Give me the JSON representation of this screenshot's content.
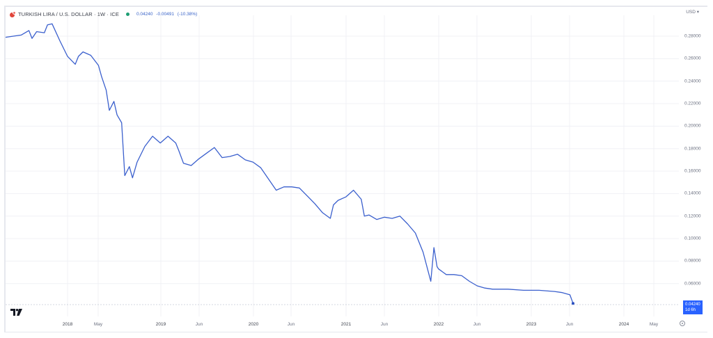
{
  "header": {
    "title": "TURKISH LIRA / U.S. DOLLAR · 1W · ICE",
    "last": "0.04240",
    "change": "-0.00491",
    "change_pct": "(-10.38%)",
    "status_icon": "market-open-dot",
    "symbol_icon": "currency-pair-flag-icon"
  },
  "currency_selector": "USD ▾",
  "price_tag": {
    "value": "0.04240",
    "countdown": "1d 6h"
  },
  "colors": {
    "line": "#3a5fcd",
    "price_tag_bg": "#2962ff",
    "status_dot": "#1e9e74",
    "change_text": "#3a64c8",
    "grid": "#f0f1f5"
  },
  "chart_data": {
    "type": "line",
    "title": "TURKISH LIRA / U.S. DOLLAR · 1W · ICE",
    "xlabel": "",
    "ylabel": "USD",
    "ylim": [
      0.04,
      0.295
    ],
    "grid": true,
    "legend": "none",
    "y_ticks": [
      "0.28000",
      "0.26000",
      "0.24000",
      "0.22000",
      "0.20000",
      "0.18000",
      "0.16000",
      "0.14000",
      "0.12000",
      "0.10000",
      "0.08000",
      "0.06000"
    ],
    "x_ticks": [
      {
        "label": "2018",
        "year": true
      },
      {
        "label": "May",
        "year": false
      },
      {
        "label": "2019",
        "year": true
      },
      {
        "label": "Jun",
        "year": false
      },
      {
        "label": "2020",
        "year": true
      },
      {
        "label": "Jun",
        "year": false
      },
      {
        "label": "2021",
        "year": true
      },
      {
        "label": "Jun",
        "year": false
      },
      {
        "label": "2022",
        "year": true
      },
      {
        "label": "Jun",
        "year": false
      },
      {
        "label": "2023",
        "year": true
      },
      {
        "label": "Jun",
        "year": false
      },
      {
        "label": "2024",
        "year": true
      },
      {
        "label": "May",
        "year": false
      }
    ],
    "series": [
      {
        "name": "TRY/USD",
        "x": [
          "2017-06",
          "2017-07",
          "2017-08",
          "2017-08",
          "2017-09",
          "2017-10",
          "2017-10",
          "2017-11",
          "2017-12",
          "2018-01",
          "2018-02",
          "2018-02",
          "2018-03",
          "2018-04",
          "2018-05",
          "2018-05",
          "2018-06",
          "2018-06",
          "2018-07",
          "2018-07",
          "2018-08",
          "2018-08",
          "2018-09",
          "2018-09",
          "2018-10",
          "2018-11",
          "2018-12",
          "2019-01",
          "2019-02",
          "2019-03",
          "2019-03",
          "2019-04",
          "2019-05",
          "2019-06",
          "2019-07",
          "2019-08",
          "2019-09",
          "2019-10",
          "2019-11",
          "2019-12",
          "2020-01",
          "2020-02",
          "2020-03",
          "2020-04",
          "2020-05",
          "2020-06",
          "2020-07",
          "2020-08",
          "2020-09",
          "2020-10",
          "2020-11",
          "2020-11",
          "2020-12",
          "2021-01",
          "2021-02",
          "2021-03",
          "2021-03",
          "2021-04",
          "2021-05",
          "2021-06",
          "2021-07",
          "2021-08",
          "2021-09",
          "2021-10",
          "2021-11",
          "2021-12",
          "2021-12",
          "2021-12",
          "2022-01",
          "2022-02",
          "2022-03",
          "2022-04",
          "2022-05",
          "2022-06",
          "2022-07",
          "2022-08",
          "2022-10",
          "2022-12",
          "2023-02",
          "2023-04",
          "2023-05",
          "2023-06",
          "2023-06"
        ],
        "values": [
          0.279,
          0.281,
          0.285,
          0.278,
          0.284,
          0.283,
          0.29,
          0.291,
          0.276,
          0.262,
          0.255,
          0.262,
          0.266,
          0.263,
          0.254,
          0.244,
          0.232,
          0.214,
          0.222,
          0.21,
          0.203,
          0.156,
          0.164,
          0.154,
          0.168,
          0.182,
          0.191,
          0.185,
          0.191,
          0.185,
          0.178,
          0.167,
          0.165,
          0.171,
          0.176,
          0.181,
          0.172,
          0.173,
          0.175,
          0.17,
          0.168,
          0.163,
          0.153,
          0.143,
          0.146,
          0.146,
          0.145,
          0.138,
          0.131,
          0.123,
          0.118,
          0.13,
          0.134,
          0.137,
          0.143,
          0.135,
          0.12,
          0.121,
          0.117,
          0.119,
          0.118,
          0.12,
          0.113,
          0.105,
          0.088,
          0.062,
          0.092,
          0.075,
          0.073,
          0.068,
          0.068,
          0.067,
          0.062,
          0.058,
          0.056,
          0.055,
          0.055,
          0.054,
          0.054,
          0.053,
          0.052,
          0.05,
          0.0424
        ]
      }
    ],
    "last_value": 0.0424
  },
  "branding": {
    "logo": "tradingview-logo"
  }
}
